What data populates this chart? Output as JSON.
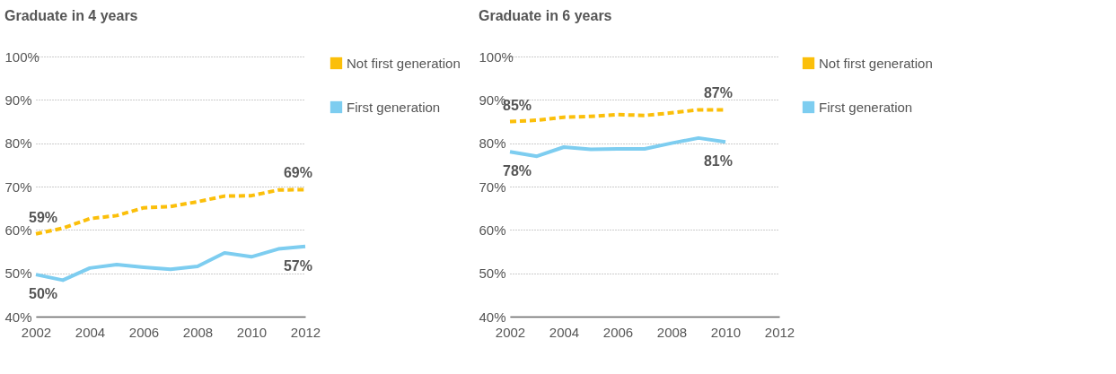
{
  "chart_data": [
    {
      "type": "line",
      "title": "Graduate in 4 years",
      "x": [
        2002,
        2003,
        2004,
        2005,
        2006,
        2007,
        2008,
        2009,
        2010,
        2011,
        2012
      ],
      "series": [
        {
          "name": "Not first generation",
          "color": "#fbbf0a",
          "line_style": "dashed",
          "values": [
            59.1,
            60.4,
            62.6,
            63.3,
            65.1,
            65.4,
            66.5,
            67.8,
            67.9,
            69.2,
            69.3
          ]
        },
        {
          "name": "First generation",
          "color": "#7dcdf0",
          "line_style": "solid",
          "values": [
            49.7,
            48.4,
            51.2,
            52.0,
            51.4,
            50.9,
            51.6,
            54.7,
            53.8,
            55.6,
            56.2
          ]
        }
      ],
      "xlim": [
        2002,
        2012
      ],
      "xticks": [
        2002,
        2004,
        2006,
        2008,
        2010,
        2012
      ],
      "ylim": [
        40,
        100
      ],
      "yticks": [
        {
          "value": 40,
          "label": "40%"
        },
        {
          "value": 50,
          "label": "50%"
        },
        {
          "value": 60,
          "label": "60%"
        },
        {
          "value": 70,
          "label": "70%"
        },
        {
          "value": 80,
          "label": "80%"
        },
        {
          "value": 90,
          "label": "90%"
        },
        {
          "value": 100,
          "label": "100%"
        }
      ],
      "grid": "y",
      "legend": "right",
      "annotations": [
        {
          "text": "59%",
          "x": 2002,
          "y": 59.1
        },
        {
          "text": "69%",
          "x": 2012,
          "y": 69.3
        },
        {
          "text": "50%",
          "x": 2002,
          "y": 49.7
        },
        {
          "text": "57%",
          "x": 2012,
          "y": 56.2
        }
      ]
    },
    {
      "type": "line",
      "title": "Graduate in 6 years",
      "x": [
        2002,
        2003,
        2004,
        2005,
        2006,
        2007,
        2008,
        2009,
        2010
      ],
      "series": [
        {
          "name": "Not first generation",
          "color": "#fbbf0a",
          "line_style": "dashed",
          "values": [
            85.0,
            85.3,
            86.0,
            86.2,
            86.6,
            86.4,
            87.0,
            87.7,
            87.7
          ]
        },
        {
          "name": "First generation",
          "color": "#7dcdf0",
          "line_style": "solid",
          "values": [
            78.0,
            77.0,
            79.1,
            78.6,
            78.7,
            78.7,
            80.0,
            81.2,
            80.3
          ]
        }
      ],
      "xlim": [
        2002,
        2012
      ],
      "xticks": [
        2002,
        2004,
        2006,
        2008,
        2010,
        2012
      ],
      "ylim": [
        40,
        100
      ],
      "yticks": [
        {
          "value": 40,
          "label": "40%"
        },
        {
          "value": 50,
          "label": "50%"
        },
        {
          "value": 60,
          "label": "60%"
        },
        {
          "value": 70,
          "label": "70%"
        },
        {
          "value": 80,
          "label": "80%"
        },
        {
          "value": 90,
          "label": "90%"
        },
        {
          "value": 100,
          "label": "100%"
        }
      ],
      "grid": "y",
      "legend": "right",
      "annotations": [
        {
          "text": "85%",
          "x": 2002,
          "y": 85.0
        },
        {
          "text": "87%",
          "x": 2010,
          "y": 87.7
        },
        {
          "text": "78%",
          "x": 2002,
          "y": 78.0
        },
        {
          "text": "81%",
          "x": 2010,
          "y": 80.3
        }
      ]
    }
  ]
}
